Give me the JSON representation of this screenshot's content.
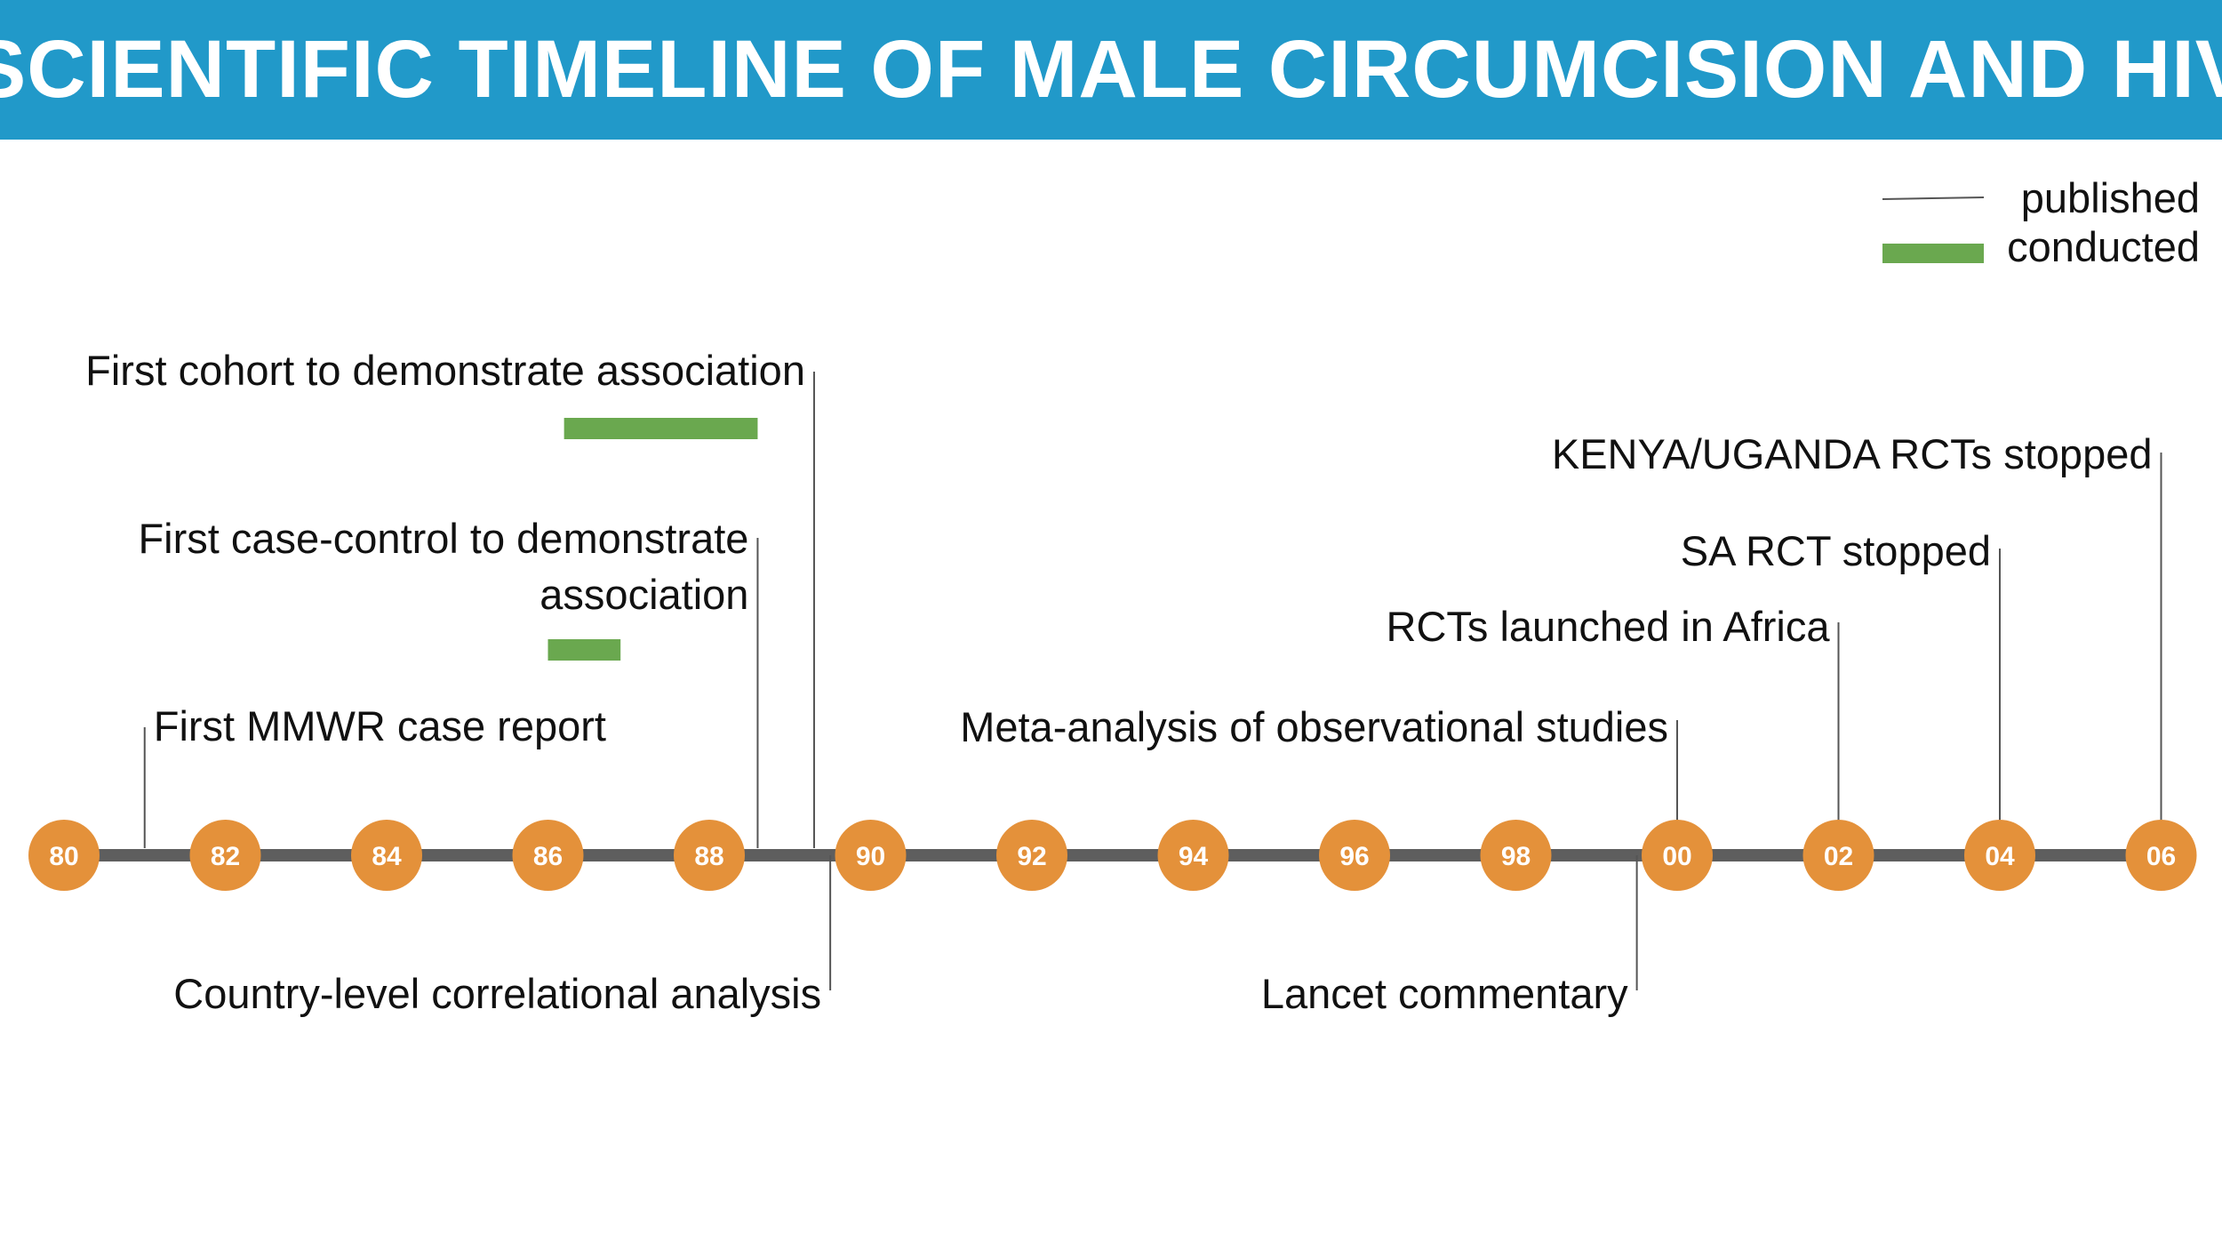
{
  "title": "SCIENTIFIC TIMELINE OF MALE CIRCUMCISION AND HIV",
  "colors": {
    "header": "#2199c9",
    "axis": "#5e5e5e",
    "node": "#e4913a",
    "conducted": "#6aa84f",
    "leader": "#555555",
    "text": "#111111"
  },
  "legend": {
    "published": "published",
    "conducted": "conducted"
  },
  "axis_years": [
    "80",
    "82",
    "84",
    "86",
    "88",
    "90",
    "92",
    "94",
    "96",
    "98",
    "00",
    "02",
    "04",
    "06"
  ],
  "events": [
    {
      "id": "mmwr",
      "label": [
        "First MMWR case report"
      ],
      "published": 1981
    },
    {
      "id": "case-control",
      "label": [
        "First case-control to demonstrate",
        "association"
      ],
      "published": 1988.6,
      "conducted": [
        1986,
        1986.9
      ]
    },
    {
      "id": "cohort",
      "label": [
        "First cohort to demonstrate association"
      ],
      "published": 1989.3,
      "conducted": [
        1986.2,
        1988.6
      ]
    },
    {
      "id": "country-level",
      "label": [
        "Country-level correlational analysis"
      ],
      "published": 1989.5
    },
    {
      "id": "lancet",
      "label": [
        "Lancet commentary"
      ],
      "published": 1999.5
    },
    {
      "id": "meta-analysis",
      "label": [
        "Meta-analysis of observational studies"
      ],
      "published": 2000
    },
    {
      "id": "rcts-launched",
      "label": [
        "RCTs launched in Africa"
      ],
      "published": 2002
    },
    {
      "id": "sa-rct",
      "label": [
        "SA RCT stopped"
      ],
      "published": 2004
    },
    {
      "id": "kenya-uganda",
      "label": [
        "KENYA/UGANDA RCTs stopped"
      ],
      "published": 2006
    }
  ]
}
